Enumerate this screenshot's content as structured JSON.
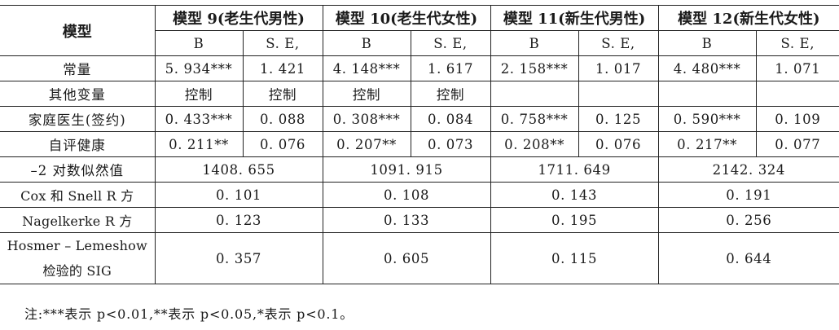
{
  "table": {
    "corner_label": "模型",
    "models": [
      "模型 9(老生代男性)",
      "模型 10(老生代女性)",
      "模型 11(新生代男性)",
      "模型 12(新生代女性)"
    ],
    "subheaders": [
      "B",
      "S. E,",
      "B",
      "S. E,",
      "B",
      "S. E,",
      "B",
      "S. E,"
    ],
    "coef_rows": [
      {
        "label": "常量",
        "cells": [
          "5. 934***",
          "1. 421",
          "4. 148***",
          "1. 617",
          "2. 158***",
          "1. 017",
          "4. 480***",
          "1. 071"
        ]
      },
      {
        "label": "其他变量",
        "cells": [
          "控制",
          "控制",
          "控制",
          "控制",
          "",
          "",
          "",
          ""
        ]
      },
      {
        "label": "家庭医生(签约)",
        "cells": [
          "0. 433***",
          "0. 088",
          "0. 308***",
          "0. 084",
          "0. 758***",
          "0. 125",
          "0. 590***",
          "0. 109"
        ]
      },
      {
        "label": "自评健康",
        "cells": [
          "0. 211**",
          "0. 076",
          "0. 207**",
          "0. 073",
          "0. 208**",
          "0. 076",
          "0. 217**",
          "0. 077"
        ]
      }
    ],
    "fit_rows": [
      {
        "label": "–2 对数似然值",
        "cells": [
          "1408. 655",
          "1091. 915",
          "1711. 649",
          "2142. 324"
        ]
      },
      {
        "label": "Cox 和 Snell R 方",
        "cells": [
          "0. 101",
          "0. 108",
          "0. 143",
          "0. 191"
        ]
      },
      {
        "label": "Nagelkerke R 方",
        "cells": [
          "0. 123",
          "0. 133",
          "0. 195",
          "0. 256"
        ]
      }
    ],
    "hosmer_row": {
      "label_line1": "Hosmer – Lemeshow",
      "label_line2": "检验的 SIG",
      "cells": [
        "0. 357",
        "0. 605",
        "0. 115",
        "0. 644"
      ]
    }
  },
  "note": "注:***表示 p<0.01,**表示 p<0.05,*表示 p<0.1。"
}
